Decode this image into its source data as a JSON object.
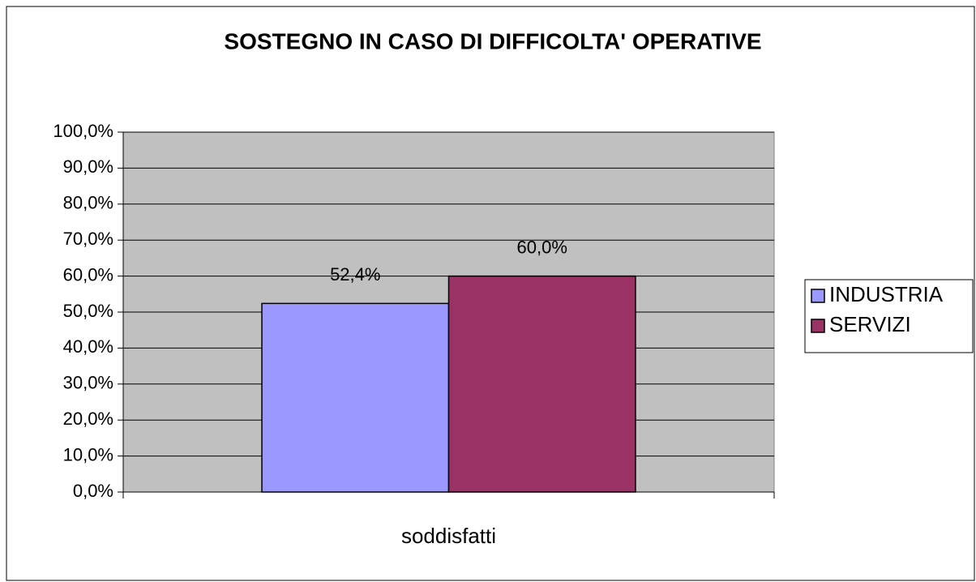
{
  "chart_data": {
    "type": "bar",
    "title": "SOSTEGNO IN CASO DI DIFFICOLTA' OPERATIVE",
    "categories": [
      "soddisfatti"
    ],
    "series": [
      {
        "name": "INDUSTRIA",
        "color": "#9999ff",
        "values": [
          52.4
        ],
        "value_labels": [
          "52,4%"
        ]
      },
      {
        "name": "SERVIZI",
        "color": "#993366",
        "values": [
          60.0
        ],
        "value_labels": [
          "60,0%"
        ]
      }
    ],
    "ylim": [
      0,
      100
    ],
    "yticks": [
      {
        "value": 0,
        "label": "0,0%"
      },
      {
        "value": 10,
        "label": "10,0%"
      },
      {
        "value": 20,
        "label": "20,0%"
      },
      {
        "value": 30,
        "label": "30,0%"
      },
      {
        "value": 40,
        "label": "40,0%"
      },
      {
        "value": 50,
        "label": "50,0%"
      },
      {
        "value": 60,
        "label": "60,0%"
      },
      {
        "value": 70,
        "label": "70,0%"
      },
      {
        "value": 80,
        "label": "80,0%"
      },
      {
        "value": 90,
        "label": "90,0%"
      },
      {
        "value": 100,
        "label": "100,0%"
      }
    ],
    "grid": true,
    "legend": "right"
  }
}
